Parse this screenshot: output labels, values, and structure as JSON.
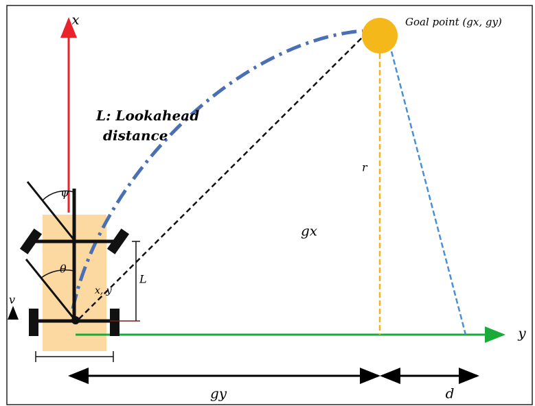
{
  "labels": {
    "x_axis": "x",
    "y_axis": "y",
    "goal": "Goal point (gx, gy)",
    "lookahead_1": "L: Lookahead",
    "lookahead_2": "distance",
    "r": "r",
    "gx": "gx",
    "psi": "ψ",
    "theta": "θ",
    "wheelbase": "L",
    "position": "x, y",
    "v": "v",
    "gy": "gy",
    "d": "d"
  }
}
